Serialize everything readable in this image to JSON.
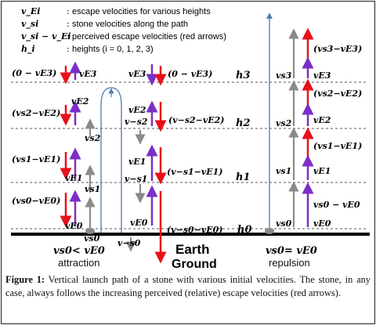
{
  "legend": [
    {
      "symbol": "v_Ei",
      "sep": ":",
      "text": "escape velocities for various heights"
    },
    {
      "symbol": "v_si",
      "sep": ":",
      "text": "stone velocities along the path"
    },
    {
      "symbol": "v_si − v_Ei",
      "sep": ":",
      "text": "perceived escape velocities (red arrows)"
    },
    {
      "symbol": "h_i",
      "sep": ":",
      "text": "heights (i = 0, 1, 2, 3)"
    }
  ],
  "heights": [
    "h3",
    "h2",
    "h1",
    "h0"
  ],
  "left_labels": {
    "r3": "(0 − vE3)",
    "e3": "vE3",
    "r2": "(vs2−vE2)",
    "e2": "vE2",
    "s2": "vs2",
    "r1": "(vs1−vE1)",
    "e1": "vE1",
    "s1": "vs1",
    "r0": "(vs0−vE0)",
    "e0": "vE0",
    "sf": "vs0",
    "cond": "vs0< vE0",
    "type": "attraction"
  },
  "mid_labels": {
    "e3": "vE3",
    "r3": "(0 − vE3)",
    "e2": "vE2",
    "s2": "v−s2",
    "r2": "(v−s2−vE2)",
    "e1": "vE1",
    "s1": "v−s1",
    "r1": "(v−s1−vE1)",
    "e0": "vE0",
    "r0": "(v−s0−vE0)",
    "sb": "v−s0"
  },
  "right_labels": {
    "s3": "vs3",
    "e3": "vE3",
    "r3": "(vs3−vE3)",
    "s2": "vs2",
    "e2": "vE2",
    "r2": "(vs2−vE2)",
    "s1": "vs1",
    "e1": "vE1",
    "r1": "(vs1−vE1)",
    "s0": "vs0",
    "e0": "vE0",
    "r0": "vs0 − vE0",
    "cond": "vs0= vE0",
    "type": "repulsion"
  },
  "ground": {
    "earth": "Earth",
    "ground": "Ground"
  },
  "caption": {
    "label": "Figure 1:",
    "text": " Vertical launch path of a stone with various initial velocities. The stone, in any case, always follows the increasing perceived (relative) escape velocities (red arrows)."
  },
  "colors": {
    "red": "#e8101a",
    "purple": "#7b2fc6",
    "gray": "#8a8a8a",
    "blue": "#4f79b0",
    "black": "#000000"
  }
}
